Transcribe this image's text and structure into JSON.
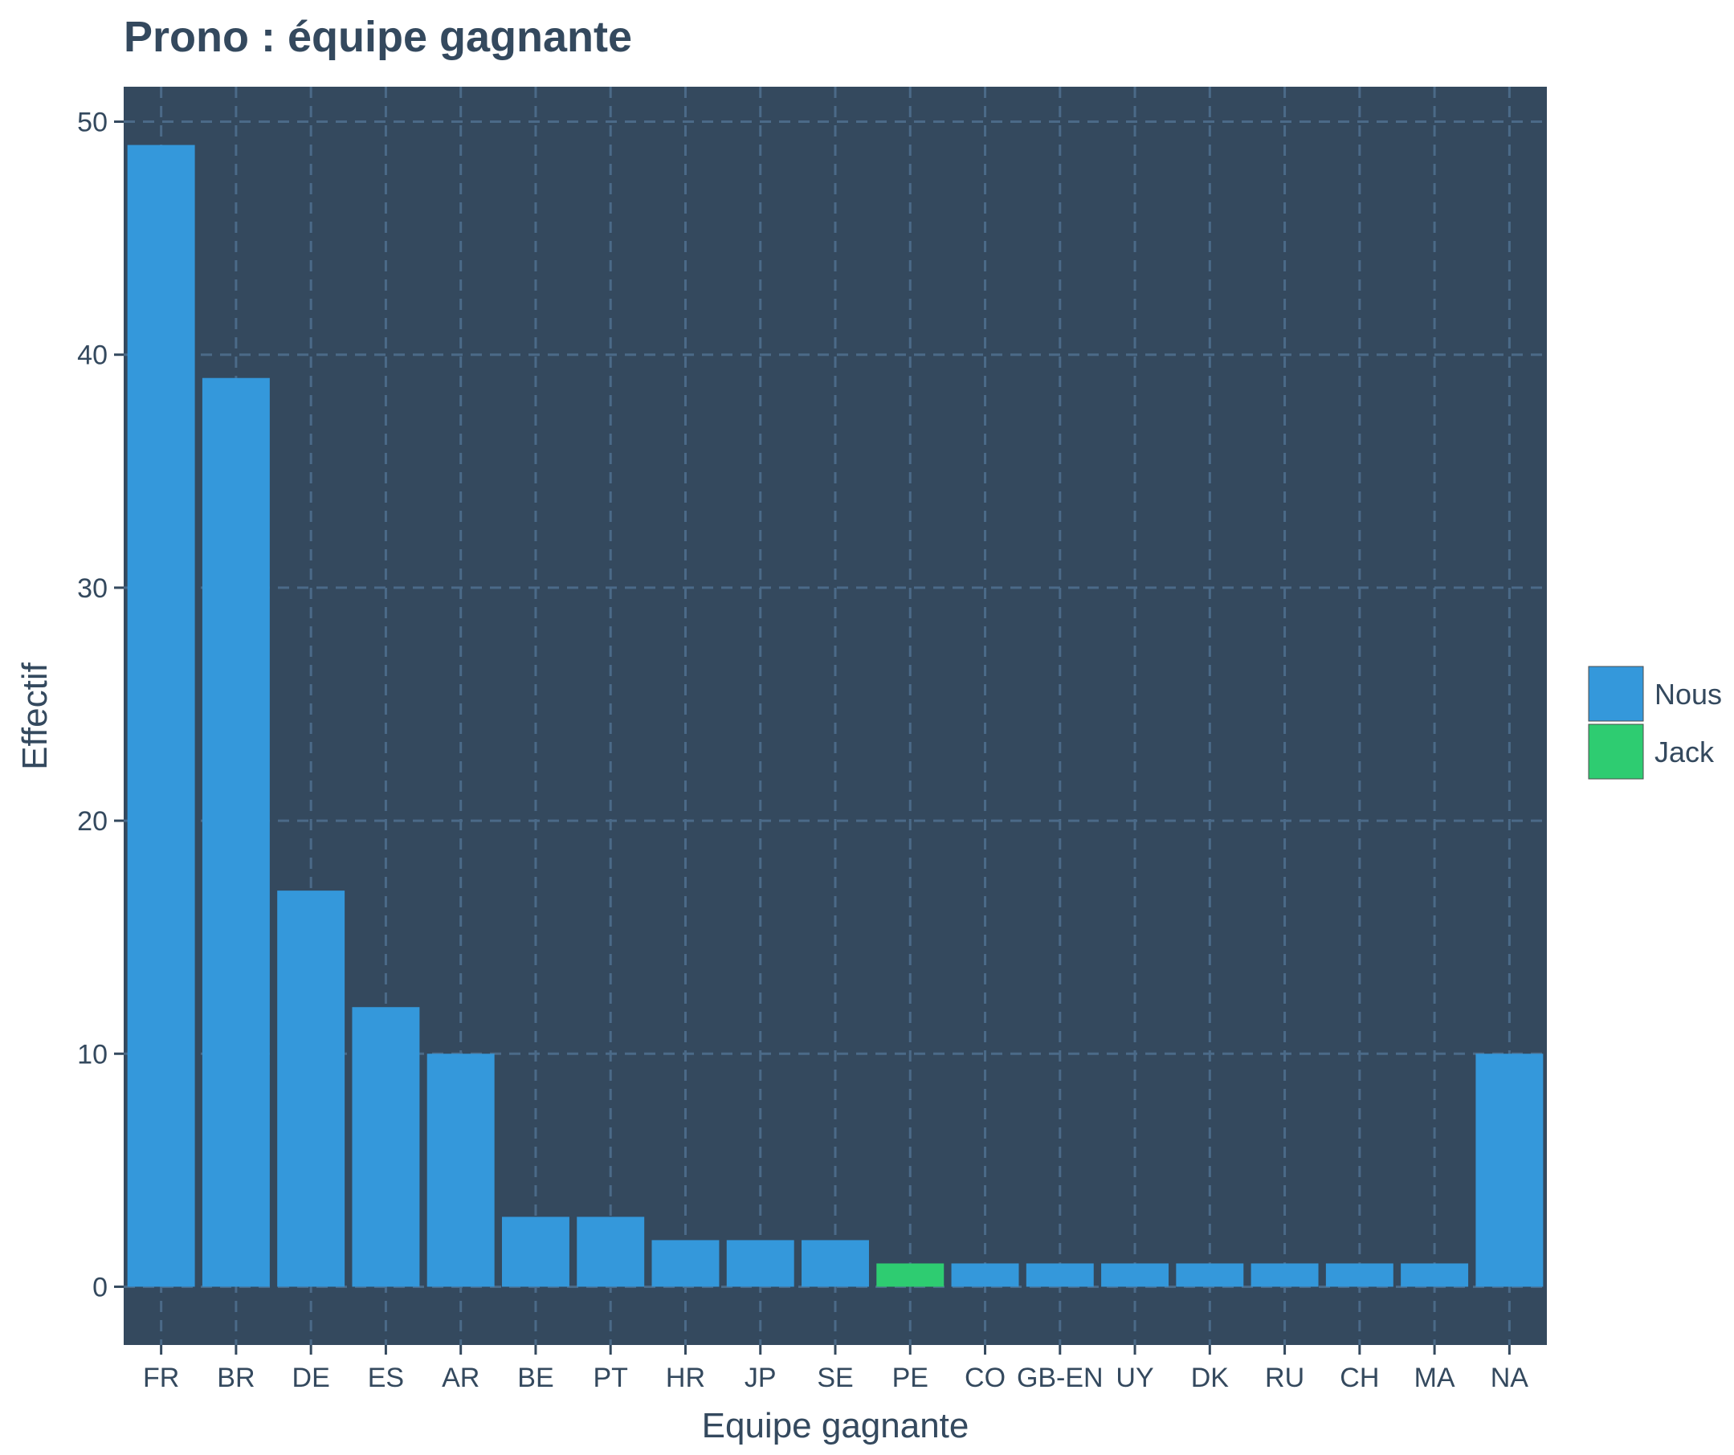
{
  "chart_data": {
    "type": "bar",
    "title": "Prono : équipe gagnante",
    "xlabel": "Equipe gagnante",
    "ylabel": "Effectif",
    "categories": [
      "FR",
      "BR",
      "DE",
      "ES",
      "AR",
      "BE",
      "PT",
      "HR",
      "JP",
      "SE",
      "PE",
      "CO",
      "GB-EN",
      "UY",
      "DK",
      "RU",
      "CH",
      "MA",
      "NA"
    ],
    "values": [
      49,
      39,
      17,
      12,
      10,
      3,
      3,
      2,
      2,
      2,
      1,
      1,
      1,
      1,
      1,
      1,
      1,
      1,
      10
    ],
    "groups": [
      "Nous",
      "Nous",
      "Nous",
      "Nous",
      "Nous",
      "Nous",
      "Nous",
      "Nous",
      "Nous",
      "Nous",
      "Jack",
      "Nous",
      "Nous",
      "Nous",
      "Nous",
      "Nous",
      "Nous",
      "Nous",
      "Nous"
    ],
    "ylim": [
      -2.5,
      51.5
    ],
    "yticks": [
      0,
      10,
      20,
      30,
      40,
      50
    ],
    "grid": true,
    "legend_position": "right",
    "legend": [
      {
        "name": "Nous",
        "color": "#3498db"
      },
      {
        "name": "Jack",
        "color": "#2ecc71"
      }
    ],
    "colors": {
      "panel_background": "#34495e",
      "grid": "#4b6a88",
      "text": "#34495e"
    }
  }
}
